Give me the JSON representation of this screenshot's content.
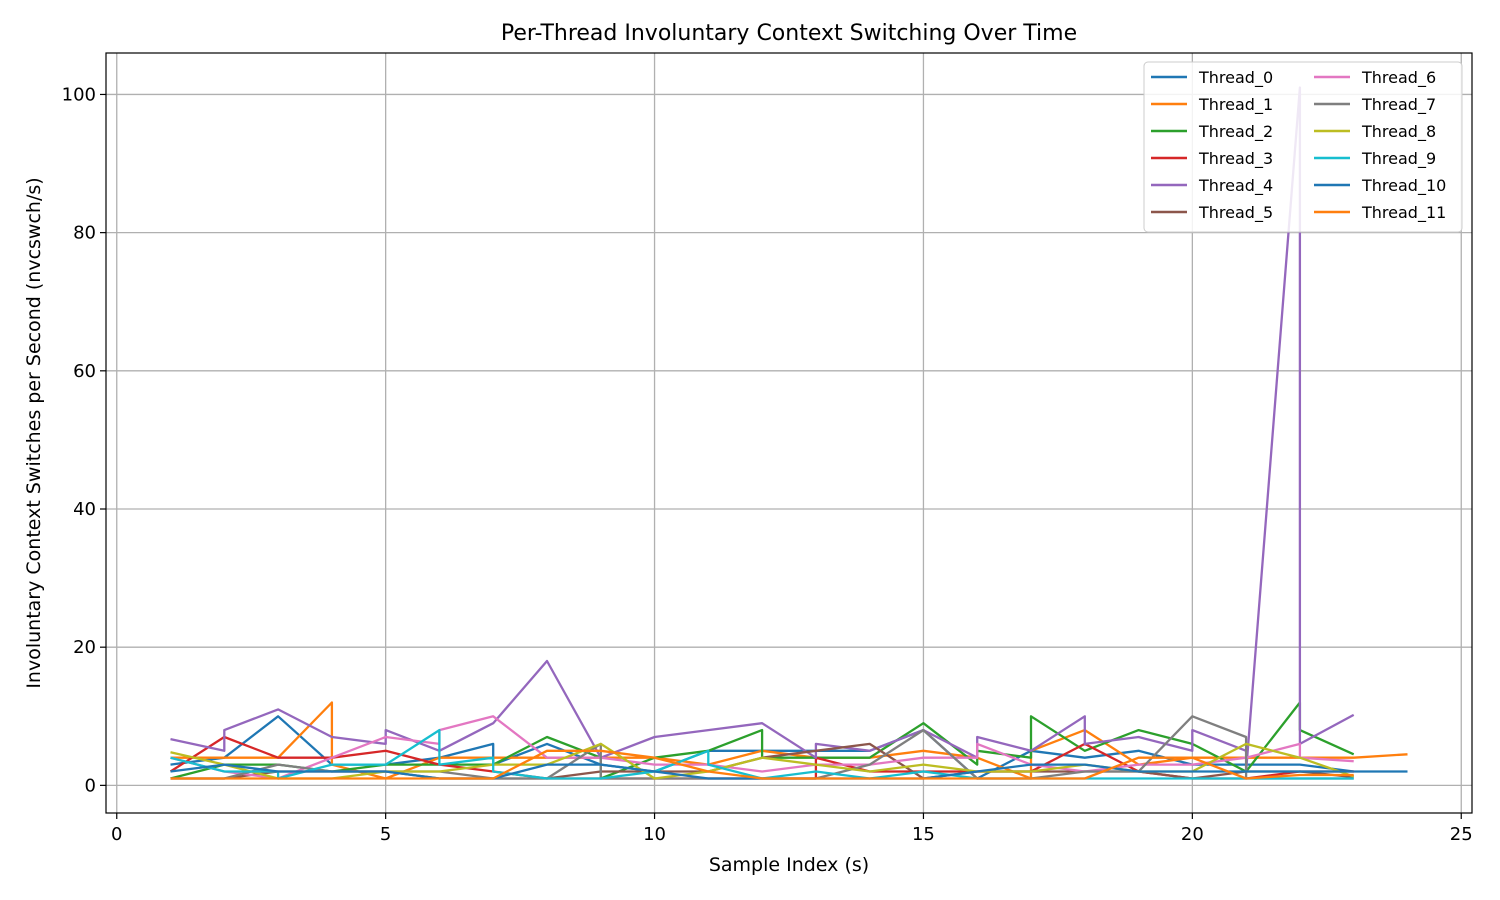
{
  "chart_data": {
    "type": "line",
    "title": "Per-Thread Involuntary Context Switching Over Time",
    "xlabel": "Sample Index (s)",
    "ylabel": "Involuntary Context Switches per Second (nvcswch/s)",
    "xlim": [
      -0.2,
      25.2
    ],
    "ylim": [
      -4,
      106
    ],
    "xticks": [
      0,
      5,
      10,
      15,
      20,
      25
    ],
    "yticks": [
      0,
      20,
      40,
      60,
      80,
      100
    ],
    "grid": true,
    "legend_position": "top-right",
    "legend_columns": 2,
    "series": [
      {
        "name": "Thread_0",
        "color": "#1f77b4",
        "points": [
          [
            1,
            3
          ],
          [
            2,
            4
          ],
          [
            3,
            10
          ],
          [
            4,
            3
          ],
          [
            5,
            3
          ],
          [
            6,
            4
          ],
          [
            7,
            6
          ],
          [
            7,
            3
          ],
          [
            8,
            6
          ],
          [
            9,
            3
          ],
          [
            10,
            2
          ],
          [
            11,
            5
          ],
          [
            12,
            5
          ],
          [
            13,
            5
          ],
          [
            14,
            5
          ],
          [
            15,
            8
          ],
          [
            16,
            1
          ],
          [
            17,
            5
          ],
          [
            18,
            4
          ],
          [
            19,
            5
          ],
          [
            20,
            3
          ],
          [
            21,
            3
          ],
          [
            22,
            3
          ],
          [
            23,
            2
          ],
          [
            24,
            2
          ]
        ]
      },
      {
        "name": "Thread_1",
        "color": "#ff7f0e",
        "points": [
          [
            1,
            4
          ],
          [
            2,
            4
          ],
          [
            3,
            4
          ],
          [
            4,
            12
          ],
          [
            4,
            3
          ],
          [
            5,
            1
          ],
          [
            6,
            4
          ],
          [
            7,
            4
          ],
          [
            8,
            4
          ],
          [
            9,
            4
          ],
          [
            10,
            4
          ],
          [
            11,
            3
          ],
          [
            12,
            5
          ],
          [
            13,
            4
          ],
          [
            14,
            4
          ],
          [
            15,
            5
          ],
          [
            16,
            4
          ],
          [
            17,
            1
          ],
          [
            17,
            5
          ],
          [
            18,
            8
          ],
          [
            19,
            3
          ],
          [
            20,
            4
          ],
          [
            21,
            4
          ],
          [
            22,
            4
          ],
          [
            23,
            4
          ],
          [
            24,
            4.5
          ]
        ]
      },
      {
        "name": "Thread_2",
        "color": "#2ca02c",
        "points": [
          [
            1,
            1
          ],
          [
            2,
            3
          ],
          [
            3,
            3
          ],
          [
            4,
            2
          ],
          [
            5,
            3
          ],
          [
            6,
            3
          ],
          [
            7,
            3
          ],
          [
            8,
            7
          ],
          [
            9,
            4
          ],
          [
            9,
            1
          ],
          [
            10,
            4
          ],
          [
            11,
            5
          ],
          [
            12,
            8
          ],
          [
            12,
            4
          ],
          [
            13,
            4
          ],
          [
            14,
            4
          ],
          [
            15,
            9
          ],
          [
            16,
            3
          ],
          [
            16,
            5
          ],
          [
            17,
            4
          ],
          [
            17,
            10
          ],
          [
            18,
            5
          ],
          [
            19,
            8
          ],
          [
            20,
            6
          ],
          [
            21,
            2
          ],
          [
            22,
            12
          ],
          [
            22,
            8
          ],
          [
            23,
            4.5
          ]
        ]
      },
      {
        "name": "Thread_3",
        "color": "#d62728",
        "points": [
          [
            1,
            2
          ],
          [
            2,
            7
          ],
          [
            3,
            4
          ],
          [
            4,
            4
          ],
          [
            5,
            5
          ],
          [
            6,
            3
          ],
          [
            7,
            2
          ],
          [
            8,
            1
          ],
          [
            9,
            1
          ],
          [
            10,
            1
          ],
          [
            11,
            1
          ],
          [
            12,
            1
          ],
          [
            13,
            1
          ],
          [
            13,
            4
          ],
          [
            14,
            2
          ],
          [
            15,
            2
          ],
          [
            16,
            2
          ],
          [
            17,
            2
          ],
          [
            18,
            6
          ],
          [
            19,
            2
          ],
          [
            20,
            1
          ],
          [
            21,
            1
          ],
          [
            22,
            2
          ],
          [
            23,
            2
          ]
        ]
      },
      {
        "name": "Thread_4",
        "color": "#9467bd",
        "points": [
          [
            1,
            6.7
          ],
          [
            2,
            5
          ],
          [
            2,
            8
          ],
          [
            3,
            11
          ],
          [
            4,
            7
          ],
          [
            5,
            6
          ],
          [
            5,
            8
          ],
          [
            6,
            5
          ],
          [
            7,
            9
          ],
          [
            8,
            18
          ],
          [
            9,
            4
          ],
          [
            10,
            7
          ],
          [
            11,
            8
          ],
          [
            12,
            9
          ],
          [
            13,
            4
          ],
          [
            13,
            6
          ],
          [
            14,
            5
          ],
          [
            15,
            8
          ],
          [
            16,
            4
          ],
          [
            16,
            7
          ],
          [
            17,
            5
          ],
          [
            18,
            10
          ],
          [
            18,
            6
          ],
          [
            19,
            7
          ],
          [
            20,
            5
          ],
          [
            20,
            8
          ],
          [
            21,
            5
          ],
          [
            21,
            2
          ],
          [
            22,
            101
          ],
          [
            22,
            6
          ],
          [
            23,
            10.2
          ]
        ]
      },
      {
        "name": "Thread_5",
        "color": "#8c564b",
        "points": [
          [
            1,
            1
          ],
          [
            2,
            1
          ],
          [
            3,
            2
          ],
          [
            4,
            2
          ],
          [
            5,
            2
          ],
          [
            6,
            1
          ],
          [
            7,
            1
          ],
          [
            8,
            1
          ],
          [
            9,
            2
          ],
          [
            10,
            2
          ],
          [
            11,
            2
          ],
          [
            12,
            4
          ],
          [
            13,
            5
          ],
          [
            14,
            6
          ],
          [
            15,
            1
          ],
          [
            16,
            2
          ],
          [
            17,
            2
          ],
          [
            18,
            2
          ],
          [
            19,
            2
          ],
          [
            20,
            1
          ],
          [
            21,
            2
          ],
          [
            22,
            2
          ],
          [
            23,
            1.2
          ]
        ]
      },
      {
        "name": "Thread_6",
        "color": "#e377c2",
        "points": [
          [
            1,
            4
          ],
          [
            2,
            2
          ],
          [
            3,
            1
          ],
          [
            4,
            4
          ],
          [
            5,
            7
          ],
          [
            6,
            6
          ],
          [
            6,
            8
          ],
          [
            7,
            10
          ],
          [
            8,
            4
          ],
          [
            9,
            4
          ],
          [
            10,
            3
          ],
          [
            11,
            3
          ],
          [
            12,
            2
          ],
          [
            13,
            3
          ],
          [
            14,
            3
          ],
          [
            15,
            4
          ],
          [
            16,
            4
          ],
          [
            16,
            6
          ],
          [
            17,
            3
          ],
          [
            18,
            2
          ],
          [
            19,
            3
          ],
          [
            20,
            3
          ],
          [
            21,
            4
          ],
          [
            22,
            6
          ],
          [
            22,
            4
          ],
          [
            23,
            3.5
          ]
        ]
      },
      {
        "name": "Thread_7",
        "color": "#7f7f7f",
        "points": [
          [
            1,
            1
          ],
          [
            2,
            1
          ],
          [
            3,
            3
          ],
          [
            4,
            2
          ],
          [
            5,
            2
          ],
          [
            6,
            2
          ],
          [
            7,
            1
          ],
          [
            8,
            1
          ],
          [
            9,
            6
          ],
          [
            9,
            1
          ],
          [
            10,
            1
          ],
          [
            11,
            1
          ],
          [
            12,
            1
          ],
          [
            13,
            1
          ],
          [
            14,
            3
          ],
          [
            15,
            8
          ],
          [
            16,
            1
          ],
          [
            17,
            1
          ],
          [
            18,
            2
          ],
          [
            19,
            2
          ],
          [
            20,
            10
          ],
          [
            21,
            7
          ],
          [
            21,
            1
          ],
          [
            22,
            1
          ],
          [
            23,
            1
          ]
        ]
      },
      {
        "name": "Thread_8",
        "color": "#bcbd22",
        "points": [
          [
            1,
            4.8
          ],
          [
            2,
            3
          ],
          [
            3,
            1
          ],
          [
            4,
            1
          ],
          [
            5,
            2
          ],
          [
            6,
            2
          ],
          [
            7,
            3
          ],
          [
            8,
            3
          ],
          [
            9,
            6
          ],
          [
            10,
            1
          ],
          [
            11,
            2
          ],
          [
            12,
            4
          ],
          [
            13,
            3
          ],
          [
            14,
            2
          ],
          [
            15,
            3
          ],
          [
            16,
            2
          ],
          [
            17,
            2
          ],
          [
            18,
            3
          ],
          [
            19,
            2
          ],
          [
            20,
            2
          ],
          [
            21,
            6
          ],
          [
            22,
            4
          ],
          [
            23,
            1.3
          ]
        ]
      },
      {
        "name": "Thread_9",
        "color": "#17becf",
        "points": [
          [
            1,
            4
          ],
          [
            2,
            2
          ],
          [
            3,
            2
          ],
          [
            3,
            1
          ],
          [
            4,
            3
          ],
          [
            5,
            3
          ],
          [
            6,
            8
          ],
          [
            6,
            3
          ],
          [
            7,
            4
          ],
          [
            7,
            2
          ],
          [
            8,
            1
          ],
          [
            9,
            1
          ],
          [
            10,
            2
          ],
          [
            11,
            5
          ],
          [
            11,
            3
          ],
          [
            12,
            1
          ],
          [
            13,
            2
          ],
          [
            14,
            1
          ],
          [
            15,
            2
          ],
          [
            16,
            1
          ],
          [
            17,
            1
          ],
          [
            18,
            1
          ],
          [
            19,
            1
          ],
          [
            20,
            1
          ],
          [
            21,
            1
          ],
          [
            22,
            1
          ],
          [
            23,
            1
          ]
        ]
      },
      {
        "name": "Thread_10",
        "color": "#1f77b4",
        "points": [
          [
            1,
            2
          ],
          [
            2,
            3
          ],
          [
            3,
            2
          ],
          [
            4,
            2
          ],
          [
            5,
            2
          ],
          [
            6,
            1
          ],
          [
            7,
            1
          ],
          [
            8,
            3
          ],
          [
            9,
            3
          ],
          [
            10,
            2
          ],
          [
            11,
            1
          ],
          [
            12,
            1
          ],
          [
            13,
            1
          ],
          [
            14,
            1
          ],
          [
            15,
            1
          ],
          [
            16,
            2
          ],
          [
            17,
            3
          ],
          [
            18,
            3
          ],
          [
            19,
            2
          ],
          [
            20,
            2
          ],
          [
            21,
            2
          ],
          [
            22,
            2
          ],
          [
            23,
            2
          ]
        ]
      },
      {
        "name": "Thread_11",
        "color": "#ff7f0e",
        "points": [
          [
            1,
            1
          ],
          [
            2,
            1
          ],
          [
            3,
            1
          ],
          [
            4,
            1
          ],
          [
            5,
            1
          ],
          [
            6,
            1
          ],
          [
            7,
            1
          ],
          [
            8,
            5
          ],
          [
            9,
            5
          ],
          [
            10,
            4
          ],
          [
            11,
            2
          ],
          [
            12,
            1
          ],
          [
            13,
            1
          ],
          [
            14,
            1
          ],
          [
            15,
            1
          ],
          [
            16,
            1
          ],
          [
            17,
            1
          ],
          [
            18,
            1
          ],
          [
            19,
            4
          ],
          [
            20,
            4
          ],
          [
            21,
            1
          ],
          [
            22,
            1.5
          ],
          [
            23,
            1.5
          ]
        ]
      }
    ]
  }
}
